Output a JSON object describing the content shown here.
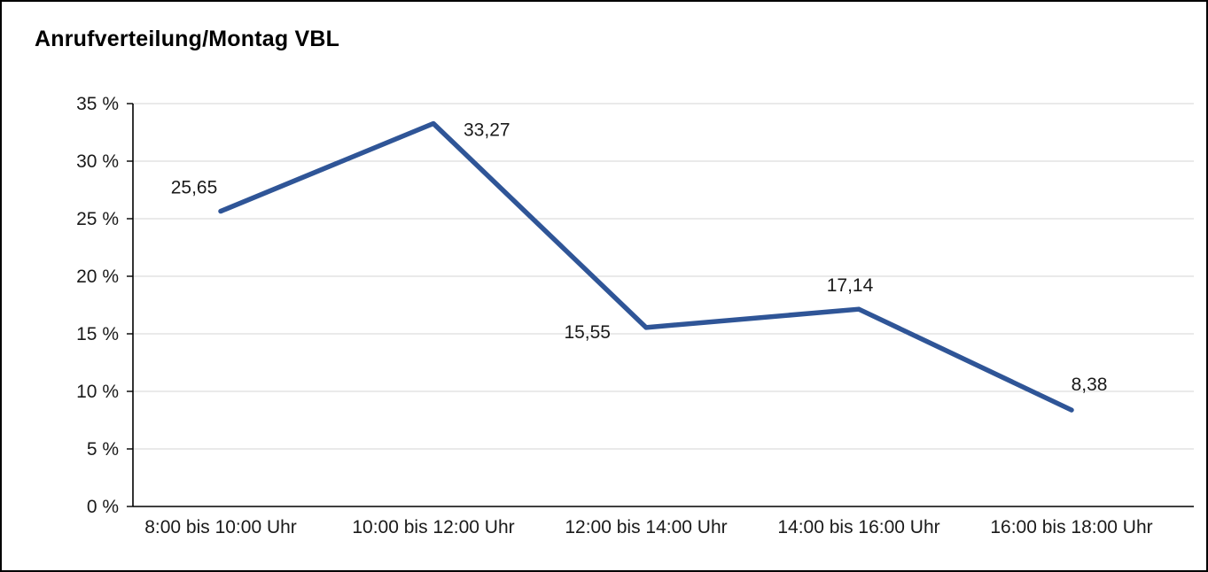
{
  "chart_data": {
    "type": "line",
    "title": "Anrufverteilung/Montag VBL",
    "categories": [
      "8:00 bis 10:00 Uhr",
      "10:00 bis 12:00 Uhr",
      "12:00 bis 14:00 Uhr",
      "14:00 bis 16:00 Uhr",
      "16:00 bis 18:00 Uhr"
    ],
    "values": [
      25.65,
      33.27,
      15.55,
      17.14,
      8.38
    ],
    "value_labels": [
      "25,65",
      "33,27",
      "15,55",
      "17,14",
      "8,38"
    ],
    "xlabel": "",
    "ylabel": "",
    "ylim": [
      0,
      35
    ],
    "ytick_step": 5,
    "ytick_labels": [
      "0 %",
      "5 %",
      "10 %",
      "15 %",
      "20 %",
      "25 %",
      "30 %",
      "35 %"
    ],
    "grid": true,
    "legend_position": "none",
    "line_color": "#2F5597",
    "grid_color": "#D6D6D6",
    "axis_color": "#000000"
  }
}
